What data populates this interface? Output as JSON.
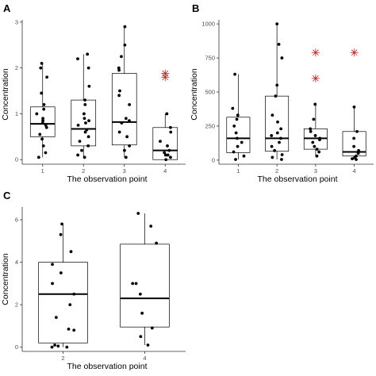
{
  "chart_data": [
    {
      "panel": "A",
      "type": "box",
      "xlabel": "The observation point",
      "ylabel": "Concentration",
      "categories": [
        "1",
        "2",
        "3",
        "4"
      ],
      "ylim": [
        -0.1,
        3.05
      ],
      "yticks": [
        0,
        1,
        2,
        3
      ],
      "grid": false,
      "boxes": [
        {
          "category": "1",
          "whisker_low": 0.05,
          "q1": 0.5,
          "median": 0.78,
          "q3": 1.15,
          "whisker_high": 2.1
        },
        {
          "category": "2",
          "whisker_low": 0.05,
          "q1": 0.3,
          "median": 0.67,
          "q3": 1.3,
          "whisker_high": 2.3
        },
        {
          "category": "3",
          "whisker_low": 0.05,
          "q1": 0.32,
          "median": 0.82,
          "q3": 1.88,
          "whisker_high": 2.9
        },
        {
          "category": "4",
          "whisker_low": 0.0,
          "q1": 0.0,
          "median": 0.2,
          "q3": 0.7,
          "whisker_high": 1.0
        }
      ],
      "points": [
        {
          "category": "1",
          "values": [
            0.05,
            0.15,
            0.3,
            0.45,
            0.55,
            0.7,
            0.75,
            0.8,
            0.85,
            0.9,
            1.0,
            1.1,
            1.2,
            1.45,
            1.8,
            2.0,
            2.1
          ]
        },
        {
          "category": "2",
          "values": [
            0.05,
            0.1,
            0.2,
            0.3,
            0.4,
            0.5,
            0.6,
            0.65,
            0.75,
            0.8,
            0.85,
            0.9,
            1.0,
            1.2,
            1.3,
            1.6,
            2.0,
            2.2,
            2.3
          ]
        },
        {
          "category": "3",
          "values": [
            0.05,
            0.2,
            0.3,
            0.5,
            0.6,
            0.8,
            0.85,
            0.9,
            1.2,
            1.4,
            1.5,
            1.95,
            2.0,
            2.25,
            2.5,
            2.9
          ]
        },
        {
          "category": "4",
          "values": [
            0.0,
            0.05,
            0.1,
            0.1,
            0.15,
            0.2,
            0.3,
            0.4,
            0.6,
            0.7,
            1.0
          ]
        }
      ],
      "outliers": [
        {
          "category": "4",
          "values": [
            1.8,
            1.88
          ]
        }
      ]
    },
    {
      "panel": "B",
      "type": "box",
      "xlabel": "The observation point",
      "ylabel": "Concentration",
      "categories": [
        "1",
        "2",
        "3",
        "4"
      ],
      "ylim": [
        -30,
        1030
      ],
      "yticks": [
        0,
        250,
        500,
        750,
        1000
      ],
      "grid": false,
      "boxes": [
        {
          "category": "1",
          "whisker_low": 5,
          "q1": 55,
          "median": 160,
          "q3": 315,
          "whisker_high": 630
        },
        {
          "category": "2",
          "whisker_low": 5,
          "q1": 65,
          "median": 160,
          "q3": 470,
          "whisker_high": 1000
        },
        {
          "category": "3",
          "whisker_low": 30,
          "q1": 80,
          "median": 160,
          "q3": 230,
          "whisker_high": 410
        },
        {
          "category": "4",
          "whisker_low": 5,
          "q1": 30,
          "median": 60,
          "q3": 210,
          "whisker_high": 390
        }
      ],
      "points": [
        {
          "category": "1",
          "values": [
            5,
            30,
            60,
            100,
            130,
            160,
            200,
            250,
            300,
            330,
            380,
            630
          ]
        },
        {
          "category": "2",
          "values": [
            5,
            20,
            40,
            70,
            100,
            130,
            160,
            180,
            200,
            230,
            280,
            330,
            470,
            550,
            750,
            850,
            1000
          ]
        },
        {
          "category": "3",
          "values": [
            30,
            60,
            80,
            100,
            130,
            150,
            160,
            180,
            210,
            230,
            300,
            410
          ]
        },
        {
          "category": "4",
          "values": [
            5,
            10,
            20,
            30,
            50,
            70,
            100,
            160,
            210,
            390
          ]
        }
      ],
      "outliers": [
        {
          "category": "3",
          "values": [
            600,
            790
          ]
        },
        {
          "category": "4",
          "values": [
            790
          ]
        }
      ]
    },
    {
      "panel": "C",
      "type": "box",
      "xlabel": "The observation point",
      "ylabel": "Concentration",
      "categories": [
        "2",
        "4"
      ],
      "ylim": [
        -0.2,
        6.6
      ],
      "yticks": [
        0,
        2,
        4,
        6
      ],
      "grid": false,
      "boxes": [
        {
          "category": "2",
          "whisker_low": 0.0,
          "q1": 0.2,
          "median": 2.5,
          "q3": 4.0,
          "whisker_high": 5.8
        },
        {
          "category": "4",
          "whisker_low": 0.1,
          "q1": 0.95,
          "median": 2.3,
          "q3": 4.85,
          "whisker_high": 6.3
        }
      ],
      "points": [
        {
          "category": "2",
          "values": [
            0.0,
            0.0,
            0.05,
            0.1,
            0.8,
            0.85,
            1.4,
            2.0,
            2.5,
            3.0,
            3.5,
            3.9,
            4.5,
            5.3,
            5.8
          ]
        },
        {
          "category": "4",
          "values": [
            0.1,
            0.5,
            0.9,
            1.6,
            2.5,
            3.0,
            3.0,
            4.9,
            5.7,
            6.3
          ]
        }
      ],
      "outliers": []
    }
  ],
  "style": {
    "point_color": "#000000",
    "outlier_color": "#b22222",
    "box_color": "#000000",
    "axis_color": "#333333",
    "tick_label_color": "#4d4d4d"
  }
}
